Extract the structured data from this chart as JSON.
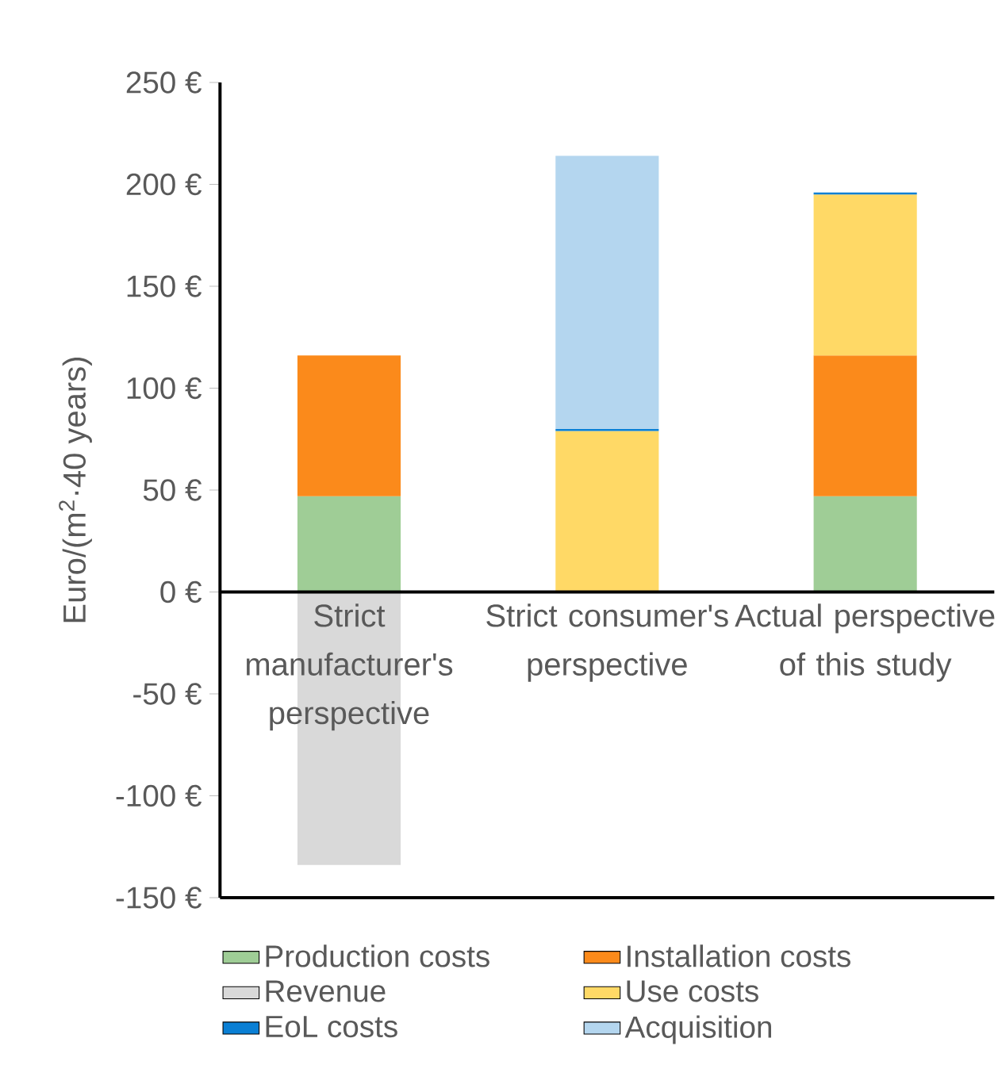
{
  "chart_data": {
    "type": "bar",
    "stacked": true,
    "ylabel": "Euro/(m$^{2}$·40 years)",
    "categories": [
      "Strict manufacturer's perspective",
      "Strict consumer's perspective",
      "Actual perspective of this study"
    ],
    "series": [
      {
        "name": "Production costs",
        "color": "#9fcd96",
        "values": [
          47,
          null,
          47
        ]
      },
      {
        "name": "Installation costs",
        "color": "#fb8a1b",
        "values": [
          69,
          null,
          69
        ]
      },
      {
        "name": "Revenue",
        "color": "#d9d9d9",
        "values": [
          -134,
          null,
          null
        ]
      },
      {
        "name": "Use costs",
        "color": "#ffd966",
        "values": [
          null,
          79,
          79
        ]
      },
      {
        "name": "EoL costs",
        "color": "#0a7fd4",
        "values": [
          null,
          1,
          1
        ]
      },
      {
        "name": "Acquisition",
        "color": "#b4d6ef",
        "values": [
          null,
          134,
          null
        ]
      }
    ],
    "ylim": [
      -150,
      250
    ],
    "yticks": [
      {
        "value": -150,
        "label": "-150 €"
      },
      {
        "value": -100,
        "label": "-100 €"
      },
      {
        "value": -50,
        "label": "-50 €"
      },
      {
        "value": 0,
        "label": "0 €"
      },
      {
        "value": 50,
        "label": "50 €"
      },
      {
        "value": 100,
        "label": "100 €"
      },
      {
        "value": 150,
        "label": "150 €"
      },
      {
        "value": 200,
        "label": "200 €"
      },
      {
        "value": 250,
        "label": "250 €"
      }
    ],
    "legend": "bottom"
  }
}
